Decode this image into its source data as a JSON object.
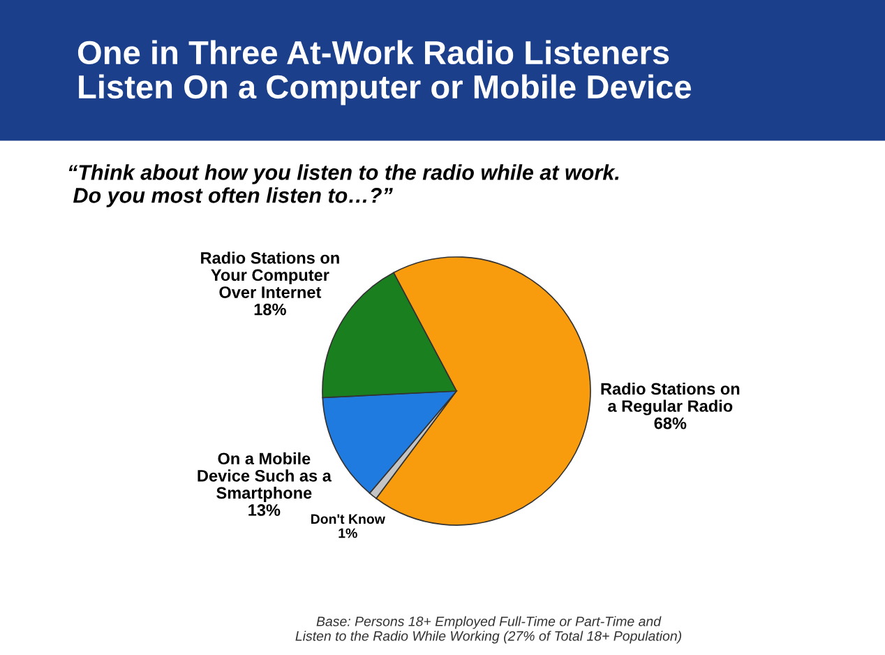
{
  "chart_data": {
    "type": "pie",
    "title": "One in Three At-Work Radio Listeners\nListen On a Computer or Mobile Device",
    "subtitle": "“Think about how you listen to the radio while at work.\n Do you most often listen to…?”",
    "categories": [
      "Radio Stations on\na Regular Radio",
      "Don't Know",
      "On a Mobile\nDevice Such as a\nSmartphone",
      "Radio Stations on\nYour Computer\nOver Internet"
    ],
    "values": [
      68,
      1,
      13,
      18
    ],
    "value_labels": [
      "68%",
      "1%",
      "13%",
      "18%"
    ],
    "colors": [
      "#f89c0e",
      "#c4c4c4",
      "#1f7be0",
      "#1a801f"
    ],
    "annotations": [
      "Base: Persons 18+ Employed Full-Time or Part-Time and\nListen to the Radio While Working (27% of Total 18+ Population)"
    ],
    "legend": false
  }
}
